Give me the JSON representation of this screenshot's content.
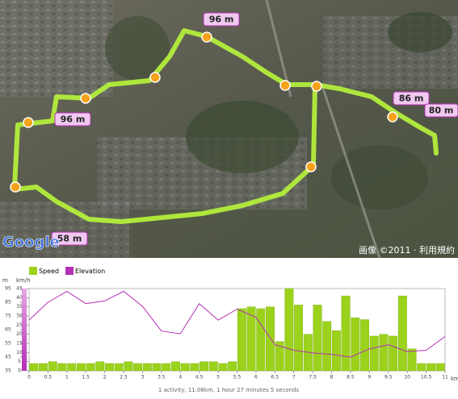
{
  "map": {
    "markers": [
      "96 m",
      "96 m",
      "86 m",
      "80 m",
      "58 m"
    ],
    "logo": "Google",
    "copyright": "画像 ©2011 · 利用規約"
  },
  "chart_data": {
    "type": "bar-line",
    "xlabel": "km",
    "ylabel": "km/h",
    "y2label": "m",
    "xlim": [
      0,
      11
    ],
    "xticks": [
      0,
      0.5,
      1,
      1.5,
      2,
      2.5,
      3,
      3.5,
      4,
      4.5,
      5,
      5.5,
      6,
      6.5,
      7,
      7.5,
      8,
      8.5,
      9,
      9.5,
      10,
      10.5,
      11
    ],
    "ylim": [
      0,
      45
    ],
    "yticks": [
      0,
      5,
      10,
      15,
      20,
      25,
      30,
      35,
      40,
      45
    ],
    "y2lim": [
      35,
      95
    ],
    "y2ticks": [
      35,
      45,
      55,
      65,
      75,
      85,
      95
    ],
    "series": [
      {
        "name": "Speed",
        "color": "#9bd21c",
        "x": [
          0,
          0.25,
          0.5,
          0.75,
          1,
          1.25,
          1.5,
          1.75,
          2,
          2.25,
          2.5,
          2.75,
          3,
          3.25,
          3.5,
          3.75,
          4,
          4.25,
          4.5,
          4.75,
          5,
          5.25,
          5.5,
          5.75,
          6,
          6.25,
          6.5,
          6.75,
          7,
          7.25,
          7.5,
          7.75,
          8,
          8.25,
          8.5,
          8.75,
          9,
          9.25,
          9.5,
          9.75,
          10,
          10.25,
          10.5,
          10.75
        ],
        "values": [
          4,
          4,
          5,
          4,
          4,
          4,
          4,
          5,
          4,
          4,
          5,
          4,
          4,
          4,
          4,
          5,
          4,
          4,
          5,
          5,
          4,
          5,
          34,
          35,
          34,
          35,
          16,
          45,
          36,
          20,
          36,
          27,
          22,
          41,
          29,
          28,
          19,
          20,
          19,
          41,
          12,
          4,
          4,
          4
        ]
      },
      {
        "name": "Elevation",
        "color": "#b42fb4",
        "axis": "y2",
        "x": [
          0,
          0.5,
          1,
          1.5,
          2,
          2.5,
          3,
          3.5,
          4,
          4.5,
          5,
          5.5,
          6,
          6.5,
          7,
          7.5,
          8,
          8.5,
          9,
          9.5,
          10,
          10.5,
          11
        ],
        "values": [
          72,
          85,
          93,
          84,
          86,
          93,
          82,
          64,
          62,
          84,
          72,
          80,
          74,
          54,
          50,
          48,
          47,
          45,
          51,
          54,
          49,
          50,
          60
        ]
      }
    ],
    "footer": "1 activity, 11.08km, 1 hour 27 minutes 5 seconds"
  }
}
